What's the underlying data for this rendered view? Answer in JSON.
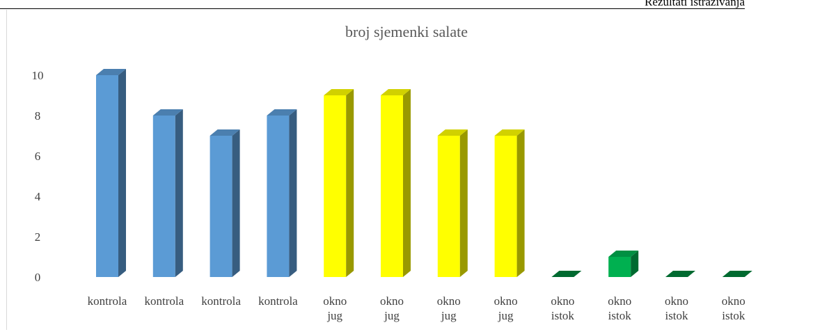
{
  "page_header": "Rezultati istraživanja",
  "chart_data": {
    "type": "bar",
    "title": "broj sjemenki salate",
    "xlabel": "",
    "ylabel": "",
    "ylim": [
      0,
      10
    ],
    "yticks": [
      0,
      2,
      4,
      6,
      8,
      10
    ],
    "grid": false,
    "legend": "none",
    "categories": [
      [
        "kontrola"
      ],
      [
        "kontrola"
      ],
      [
        "kontrola"
      ],
      [
        "kontrola"
      ],
      [
        "okno",
        "jug"
      ],
      [
        "okno",
        "jug"
      ],
      [
        "okno",
        "jug"
      ],
      [
        "okno",
        "jug"
      ],
      [
        "okno",
        "istok"
      ],
      [
        "okno",
        "istok"
      ],
      [
        "okno",
        "istok"
      ],
      [
        "okno",
        "istok"
      ]
    ],
    "values": [
      10,
      8,
      7,
      8,
      9,
      9,
      7,
      7,
      0,
      1,
      0,
      0
    ],
    "colors": [
      "#5b9bd5",
      "#5b9bd5",
      "#5b9bd5",
      "#5b9bd5",
      "#ffff00",
      "#ffff00",
      "#ffff00",
      "#ffff00",
      "#00b050",
      "#00b050",
      "#00b050",
      "#00b050"
    ]
  }
}
